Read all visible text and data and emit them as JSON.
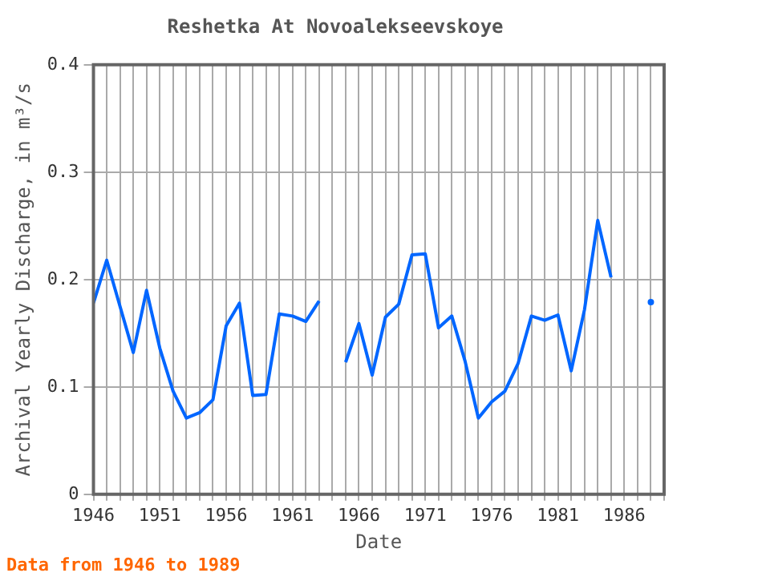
{
  "chart_data": {
    "type": "line",
    "title": "Reshetka At Novoalekseevskoye",
    "xlabel": "Date",
    "ylabel": "Archival Yearly Discharge, in m³/s",
    "annotations": [
      "Data from 1946 to 1989"
    ],
    "x": [
      1946,
      1947,
      1948,
      1949,
      1950,
      1951,
      1952,
      1953,
      1954,
      1955,
      1956,
      1957,
      1958,
      1959,
      1960,
      1961,
      1962,
      1963,
      1964,
      1965,
      1966,
      1967,
      1968,
      1969,
      1970,
      1971,
      1972,
      1973,
      1974,
      1975,
      1976,
      1977,
      1978,
      1979,
      1980,
      1981,
      1982,
      1983,
      1984,
      1985,
      1986,
      1987,
      1988
    ],
    "series": [
      {
        "color": "#0066ff",
        "values": [
          0.178,
          0.218,
          0.175,
          0.132,
          0.19,
          0.136,
          0.096,
          0.071,
          0.076,
          0.088,
          0.157,
          0.178,
          0.092,
          0.093,
          0.168,
          0.166,
          0.161,
          0.18,
          null,
          0.123,
          0.159,
          0.111,
          0.165,
          0.177,
          0.223,
          0.224,
          0.155,
          0.166,
          0.124,
          0.071,
          0.086,
          0.096,
          0.122,
          0.166,
          0.162,
          0.167,
          0.115,
          0.172,
          0.255,
          0.202,
          null,
          null,
          0.179
        ]
      }
    ],
    "xlim": [
      1946,
      1989
    ],
    "xticks": [
      1946,
      {
        "value": 1947,
        "label": null
      },
      {
        "value": 1948,
        "label": null
      },
      {
        "value": 1949,
        "label": null
      },
      {
        "value": 1950,
        "label": null
      },
      1951,
      {
        "value": 1952,
        "label": null
      },
      {
        "value": 1953,
        "label": null
      },
      {
        "value": 1954,
        "label": null
      },
      {
        "value": 1955,
        "label": null
      },
      1956,
      {
        "value": 1957,
        "label": null
      },
      {
        "value": 1958,
        "label": null
      },
      {
        "value": 1959,
        "label": null
      },
      {
        "value": 1960,
        "label": null
      },
      1961,
      {
        "value": 1962,
        "label": null
      },
      {
        "value": 1963,
        "label": null
      },
      {
        "value": 1964,
        "label": null
      },
      {
        "value": 1965,
        "label": null
      },
      1966,
      {
        "value": 1967,
        "label": null
      },
      {
        "value": 1968,
        "label": null
      },
      {
        "value": 1969,
        "label": null
      },
      {
        "value": 1970,
        "label": null
      },
      1971,
      {
        "value": 1972,
        "label": null
      },
      {
        "value": 1973,
        "label": null
      },
      {
        "value": 1974,
        "label": null
      },
      {
        "value": 1975,
        "label": null
      },
      1976,
      {
        "value": 1977,
        "label": null
      },
      {
        "value": 1978,
        "label": null
      },
      {
        "value": 1979,
        "label": null
      },
      {
        "value": 1980,
        "label": null
      },
      1981,
      {
        "value": 1982,
        "label": null
      },
      {
        "value": 1983,
        "label": null
      },
      {
        "value": 1984,
        "label": null
      },
      {
        "value": 1985,
        "label": null
      },
      1986,
      {
        "value": 1987,
        "label": null
      },
      {
        "value": 1988,
        "label": null
      },
      {
        "value": 1989,
        "label": null
      }
    ],
    "ylim": [
      0,
      0.4
    ],
    "yticks": [
      0,
      0.1,
      0.2,
      0.3,
      0.4
    ],
    "grid": true,
    "legend": false
  }
}
